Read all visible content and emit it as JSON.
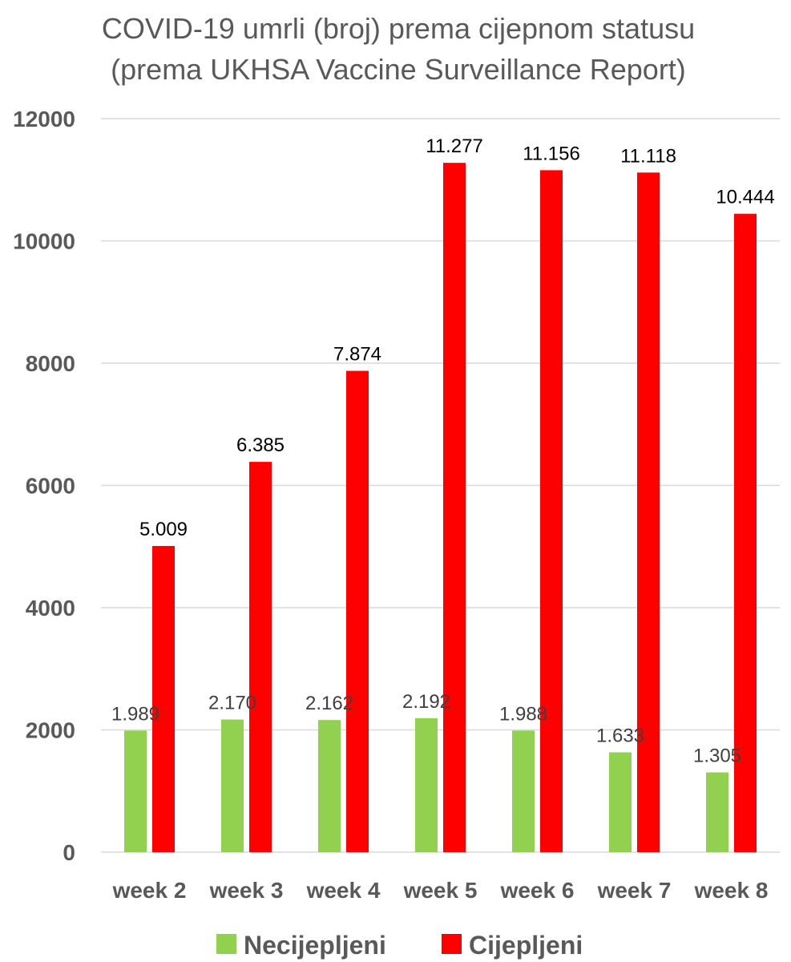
{
  "chart_data": {
    "type": "bar",
    "title": "COVID-19 umrli (broj) prema cijepnom statusu",
    "subtitle": "(prema UKHSA Vaccine Surveillance Report)",
    "categories": [
      "week 2",
      "week 3",
      "week 4",
      "week 5",
      "week 6",
      "week 7",
      "week 8"
    ],
    "series": [
      {
        "name": "Necijepljeni",
        "color": "#92d050",
        "label_color": "#404040",
        "values": [
          1989,
          2170,
          2162,
          2192,
          1988,
          1633,
          1305
        ],
        "labels": [
          "1.989",
          "2.170",
          "2.162",
          "2.192",
          "1.988",
          "1.633",
          "1.305"
        ]
      },
      {
        "name": "Cijepljeni",
        "color": "#ff0000",
        "label_color": "#000000",
        "values": [
          5009,
          6385,
          7874,
          11277,
          11156,
          11118,
          10444
        ],
        "labels": [
          "5.009",
          "6.385",
          "7.874",
          "11.277",
          "11.156",
          "11.118",
          "10.444"
        ]
      }
    ],
    "ylim": [
      0,
      12000
    ],
    "yticks": [
      "0",
      "2000",
      "4000",
      "6000",
      "8000",
      "10000",
      "12000"
    ],
    "grid": true,
    "legend": "bottom"
  }
}
